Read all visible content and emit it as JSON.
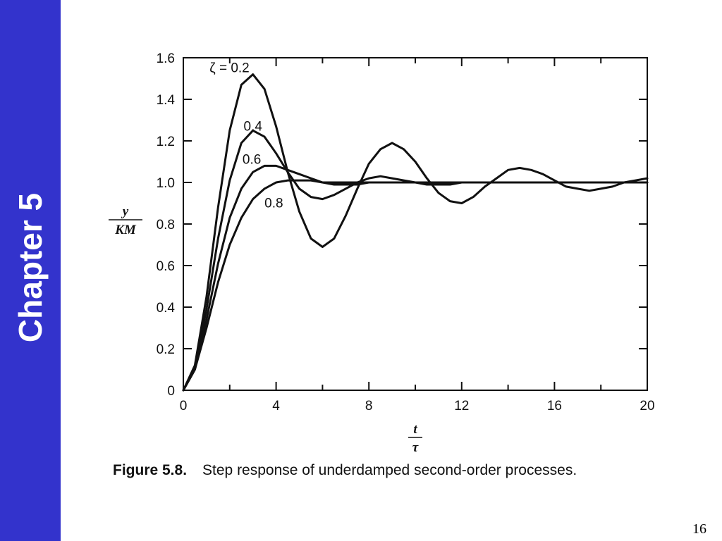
{
  "slide": {
    "chapter_label": "Chapter 5",
    "page_number": "16",
    "sidebar_color": "#3333cc"
  },
  "caption": {
    "figure_number": "Figure 5.8.",
    "text": "Step response of underdamped second-order processes."
  },
  "chart_data": {
    "type": "line",
    "title": "",
    "ylabel": {
      "numerator": "y",
      "denominator": "KM"
    },
    "xlabel": {
      "numerator": "t",
      "denominator": "τ"
    },
    "xlim": [
      0,
      20
    ],
    "ylim": [
      0,
      1.6
    ],
    "x_ticks": [
      0,
      4,
      8,
      12,
      16,
      20
    ],
    "y_ticks": [
      0,
      0.2,
      0.4,
      0.6,
      0.8,
      1.0,
      1.2,
      1.4,
      1.6
    ],
    "x_tick_labels": [
      "0",
      "4",
      "8",
      "12",
      "16",
      "20"
    ],
    "y_tick_labels": [
      "0",
      "0.2",
      "0.4",
      "0.6",
      "0.8",
      "1.0",
      "1.2",
      "1.4",
      "1.6"
    ],
    "grid": false,
    "line_color": "#111111",
    "series": [
      {
        "name": "ζ = 0.2",
        "zeta": 0.2,
        "x": [
          0,
          0.5,
          1,
          1.5,
          2,
          2.5,
          3,
          3.5,
          4,
          4.5,
          5,
          5.5,
          6,
          6.5,
          7,
          7.5,
          8,
          8.5,
          9,
          9.5,
          10,
          10.5,
          11,
          11.5,
          12,
          12.5,
          13,
          13.5,
          14,
          14.5,
          15,
          15.5,
          16,
          16.5,
          17,
          17.5,
          18,
          18.5,
          19,
          19.5,
          20
        ],
        "y": [
          0.0,
          0.12,
          0.45,
          0.88,
          1.25,
          1.47,
          1.52,
          1.45,
          1.27,
          1.05,
          0.86,
          0.73,
          0.69,
          0.73,
          0.84,
          0.97,
          1.09,
          1.16,
          1.19,
          1.16,
          1.1,
          1.02,
          0.95,
          0.91,
          0.9,
          0.93,
          0.98,
          1.02,
          1.06,
          1.07,
          1.06,
          1.04,
          1.01,
          0.98,
          0.97,
          0.96,
          0.97,
          0.98,
          1.0,
          1.01,
          1.02
        ]
      },
      {
        "name": "0.4",
        "zeta": 0.4,
        "x": [
          0,
          0.5,
          1,
          1.5,
          2,
          2.5,
          3,
          3.5,
          4,
          4.5,
          5,
          5.5,
          6,
          6.5,
          7,
          7.5,
          8,
          8.5,
          9,
          9.5,
          10,
          10.5,
          11,
          11.5,
          12,
          12.5,
          13,
          13.5,
          14,
          14.5,
          15,
          15.5,
          16,
          16.5,
          17,
          17.5,
          18,
          18.5,
          19,
          19.5,
          20
        ],
        "y": [
          0.0,
          0.11,
          0.39,
          0.73,
          1.01,
          1.19,
          1.25,
          1.22,
          1.14,
          1.05,
          0.97,
          0.93,
          0.92,
          0.94,
          0.97,
          1.0,
          1.02,
          1.03,
          1.02,
          1.01,
          1.0,
          0.99,
          0.99,
          0.99,
          1.0,
          1.0,
          1.0,
          1.0,
          1.0,
          1.0,
          1.0,
          1.0,
          1.0,
          1.0,
          1.0,
          1.0,
          1.0,
          1.0,
          1.0,
          1.0,
          1.0
        ]
      },
      {
        "name": "0.6",
        "zeta": 0.6,
        "x": [
          0,
          0.5,
          1,
          1.5,
          2,
          2.5,
          3,
          3.5,
          4,
          4.5,
          5,
          5.5,
          6,
          6.5,
          7,
          7.5,
          8,
          8.5,
          9,
          9.5,
          10,
          10.5,
          11,
          11.5,
          12,
          12.5,
          13,
          13.5,
          14,
          14.5,
          15,
          15.5,
          16,
          16.5,
          17,
          17.5,
          18,
          18.5,
          19,
          19.5,
          20
        ],
        "y": [
          0.0,
          0.1,
          0.34,
          0.61,
          0.83,
          0.97,
          1.05,
          1.08,
          1.08,
          1.06,
          1.04,
          1.02,
          1.0,
          0.99,
          0.99,
          0.99,
          1.0,
          1.0,
          1.0,
          1.0,
          1.0,
          1.0,
          1.0,
          1.0,
          1.0,
          1.0,
          1.0,
          1.0,
          1.0,
          1.0,
          1.0,
          1.0,
          1.0,
          1.0,
          1.0,
          1.0,
          1.0,
          1.0,
          1.0,
          1.0,
          1.0
        ]
      },
      {
        "name": "0.8",
        "zeta": 0.8,
        "x": [
          0,
          0.5,
          1,
          1.5,
          2,
          2.5,
          3,
          3.5,
          4,
          4.5,
          5,
          5.5,
          6,
          6.5,
          7,
          7.5,
          8,
          8.5,
          9,
          9.5,
          10,
          10.5,
          11,
          11.5,
          12,
          12.5,
          13,
          13.5,
          14,
          14.5,
          15,
          15.5,
          16,
          16.5,
          17,
          17.5,
          18,
          18.5,
          19,
          19.5,
          20
        ],
        "y": [
          0.0,
          0.1,
          0.3,
          0.52,
          0.7,
          0.83,
          0.92,
          0.97,
          1.0,
          1.01,
          1.01,
          1.01,
          1.0,
          1.0,
          1.0,
          1.0,
          1.0,
          1.0,
          1.0,
          1.0,
          1.0,
          1.0,
          1.0,
          1.0,
          1.0,
          1.0,
          1.0,
          1.0,
          1.0,
          1.0,
          1.0,
          1.0,
          1.0,
          1.0,
          1.0,
          1.0,
          1.0,
          1.0,
          1.0,
          1.0,
          1.0
        ]
      }
    ]
  }
}
